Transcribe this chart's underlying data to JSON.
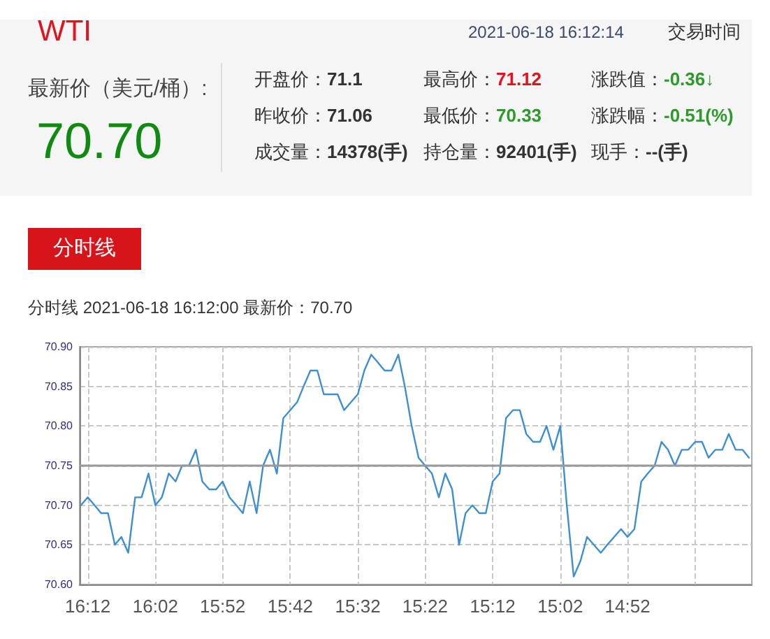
{
  "chart_data": {
    "type": "line",
    "title": "WTI",
    "subtitle": "分时线  2021-06-18 16:12:00  最新价：70.70",
    "annotations": [
      "2021-06-18 16:12:14",
      "交易时间",
      "最新价（美元/桶）:",
      "70.70",
      "开盘价：",
      "71.1",
      "最高价：",
      "71.12",
      "涨跌值：",
      "-0.36↓",
      "昨收价：",
      "71.06",
      "最低价：",
      "70.33",
      "涨跌幅：",
      "-0.51(%)",
      "成交量：",
      "14378(手)",
      "持仓量：",
      "92401(手)",
      "现手：",
      "--(手)",
      "分时线"
    ],
    "x": [
      16.217,
      16.2,
      16.183,
      16.167,
      16.15,
      16.133,
      16.117,
      16.1,
      16.083,
      16.067,
      16.05,
      16.033,
      16.017,
      16,
      15.983,
      15.967,
      15.95,
      15.933,
      15.917,
      15.9,
      15.883,
      15.867,
      15.85,
      15.833,
      15.817,
      15.8,
      15.783,
      15.767,
      15.75,
      15.733,
      15.717,
      15.7,
      15.683,
      15.667,
      15.65,
      15.633,
      15.617,
      15.6,
      15.583,
      15.567,
      15.55,
      15.533,
      15.517,
      15.5,
      15.483,
      15.467,
      15.45,
      15.433,
      15.417,
      15.4,
      15.383,
      15.367,
      15.35,
      15.333,
      15.317,
      15.3,
      15.283,
      15.267,
      15.25,
      15.233,
      15.217,
      15.2,
      15.183,
      15.167,
      15.15,
      15.133,
      15.117,
      15.1,
      15.083,
      15.067,
      15.05,
      15.033,
      15.017,
      15,
      14.983,
      14.967,
      14.95,
      14.933,
      14.917,
      14.9,
      14.883,
      14.867,
      14.85,
      14.833,
      14.817,
      14.8,
      14.783,
      14.767,
      14.75,
      14.733,
      14.717,
      14.7,
      14.683,
      14.667,
      14.65,
      14.633,
      14.617,
      14.6,
      14.583,
      14.567
    ],
    "values": [
      70.7,
      70.71,
      70.7,
      70.69,
      70.69,
      70.65,
      70.66,
      70.64,
      70.71,
      70.71,
      70.74,
      70.7,
      70.71,
      70.74,
      70.73,
      70.75,
      70.75,
      70.77,
      70.73,
      70.72,
      70.72,
      70.73,
      70.71,
      70.7,
      70.69,
      70.73,
      70.69,
      70.75,
      70.77,
      70.74,
      70.81,
      70.82,
      70.83,
      70.85,
      70.87,
      70.87,
      70.84,
      70.84,
      70.84,
      70.82,
      70.83,
      70.84,
      70.87,
      70.89,
      70.88,
      70.87,
      70.87,
      70.89,
      70.85,
      70.8,
      70.76,
      70.75,
      70.74,
      70.71,
      70.74,
      70.72,
      70.65,
      70.69,
      70.7,
      70.69,
      70.69,
      70.73,
      70.74,
      70.81,
      70.82,
      70.82,
      70.79,
      70.78,
      70.78,
      70.8,
      70.77,
      70.8,
      70.7,
      70.61,
      70.63,
      70.66,
      70.65,
      70.64,
      70.65,
      70.66,
      70.67,
      70.66,
      70.67,
      70.73,
      70.74,
      70.75,
      70.78,
      70.77,
      70.75,
      70.77,
      70.77,
      70.78,
      70.78,
      70.76,
      70.77,
      70.77,
      70.79,
      70.77,
      70.77,
      70.76
    ],
    "color": "#3d8fd1",
    "xlim": [
      16.22,
      14.56
    ],
    "xticks": [
      {
        "value": 16.2,
        "label": "16:12"
      },
      {
        "value": 16.033,
        "label": "16:02"
      },
      {
        "value": 15.867,
        "label": "15:52"
      },
      {
        "value": 15.7,
        "label": "15:42"
      },
      {
        "value": 15.533,
        "label": "15:32"
      },
      {
        "value": 15.367,
        "label": "15:22"
      },
      {
        "value": 15.2,
        "label": "15:12"
      },
      {
        "value": 15.033,
        "label": "15:02"
      },
      {
        "value": 14.867,
        "label": "14:52"
      },
      {
        "value": 14.7,
        "label": null
      }
    ],
    "ylim": [
      70.6,
      70.9
    ],
    "yticks": [
      {
        "value": 70.6,
        "label": "70.60"
      },
      {
        "value": 70.65,
        "label": "70.65"
      },
      {
        "value": 70.7,
        "label": "70.70"
      },
      {
        "value": 70.75,
        "label": "70.75"
      },
      {
        "value": 70.8,
        "label": "70.80"
      },
      {
        "value": 70.85,
        "label": "70.85"
      },
      {
        "value": 70.9,
        "label": "70.90"
      }
    ],
    "ref_lines": [
      {
        "axis": "y",
        "value": 70.75,
        "color": "#999999"
      }
    ],
    "grid": true
  }
}
